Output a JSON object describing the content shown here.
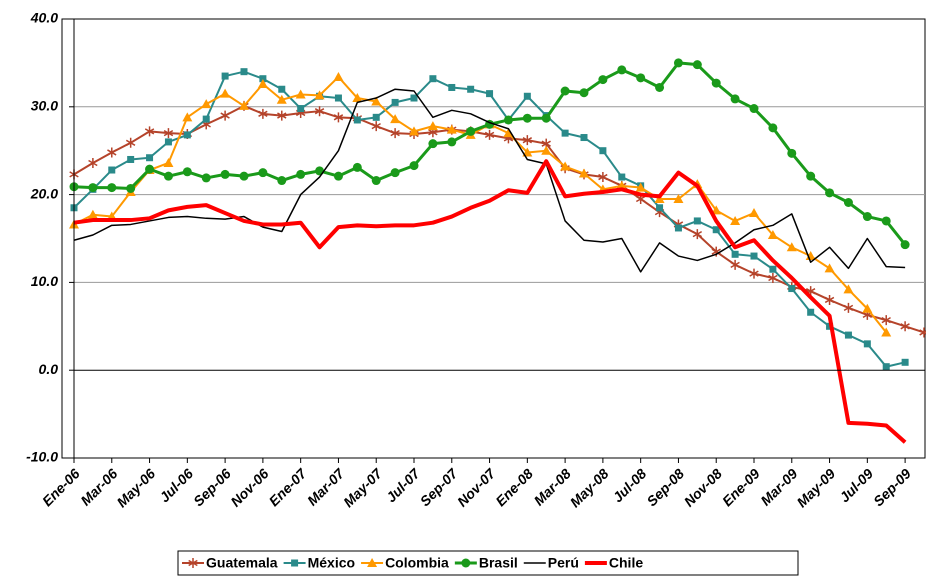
{
  "chart_data": {
    "type": "line",
    "categories": [
      "Ene-06",
      null,
      "Mar-06",
      null,
      "May-06",
      null,
      "Jul-06",
      null,
      "Sep-06",
      null,
      "Nov-06",
      null,
      "Ene-07",
      null,
      "Mar-07",
      null,
      "May-07",
      null,
      "Jul-07",
      null,
      "Sep-07",
      null,
      "Nov-07",
      null,
      "Ene-08",
      null,
      "Mar-08",
      null,
      "May-08",
      null,
      "Jul-08",
      null,
      "Sep-08",
      null,
      "Nov-08",
      null,
      "Ene-09",
      null,
      "Mar-09",
      null,
      "May-09",
      null,
      "Jul-09",
      null,
      "Sep-09",
      null
    ],
    "ylim": [
      -10,
      40
    ],
    "yticks": [
      {
        "value": -10,
        "label": "-10.0"
      },
      {
        "value": 0,
        "label": "0.0"
      },
      {
        "value": 10,
        "label": "10.0"
      },
      {
        "value": 20,
        "label": "20.0"
      },
      {
        "value": 30,
        "label": "30.0"
      },
      {
        "value": 40,
        "label": "40.0"
      }
    ],
    "grid": true,
    "legend": "bottom",
    "series": [
      {
        "name": "Guatemala",
        "color": "#b5432a",
        "marker": "star",
        "line_width": 2,
        "values": [
          22.3,
          23.6,
          24.8,
          25.9,
          27.2,
          27.0,
          26.9,
          28.0,
          29.0,
          30.1,
          29.2,
          29.0,
          29.3,
          29.5,
          28.8,
          28.7,
          27.8,
          27.0,
          26.9,
          27.1,
          27.4,
          27.2,
          26.8,
          26.4,
          26.2,
          25.8,
          23.0,
          22.3,
          22.0,
          21.0,
          19.5,
          18.0,
          16.6,
          15.5,
          13.5,
          12.0,
          11.0,
          10.5,
          9.5,
          9.0,
          8.0,
          7.1,
          6.3,
          5.7,
          5.0,
          4.3
        ]
      },
      {
        "name": "México",
        "color": "#2a8a8a",
        "marker": "square",
        "line_width": 2,
        "values": [
          18.5,
          20.6,
          22.8,
          24.0,
          24.2,
          26.0,
          26.8,
          28.6,
          33.5,
          34.0,
          33.2,
          32.0,
          29.8,
          31.2,
          31.0,
          28.5,
          28.8,
          30.5,
          31.0,
          33.2,
          32.2,
          32.0,
          31.5,
          28.5,
          31.2,
          29.0,
          27.0,
          26.5,
          25.0,
          22.0,
          21.0,
          18.5,
          16.2,
          17.0,
          16.0,
          13.2,
          13.0,
          11.5,
          9.3,
          6.6,
          5.0,
          4.0,
          3.0,
          0.4,
          0.9,
          null
        ]
      },
      {
        "name": "Colombia",
        "color": "#ff9900",
        "marker": "triangle",
        "line_width": 2,
        "values": [
          16.6,
          17.7,
          17.5,
          20.3,
          22.8,
          23.6,
          28.8,
          30.3,
          31.5,
          30.1,
          32.6,
          30.8,
          31.4,
          31.3,
          33.4,
          31.0,
          30.6,
          28.6,
          27.2,
          27.8,
          27.4,
          26.8,
          28.0,
          27.0,
          24.8,
          25.0,
          23.2,
          22.4,
          20.6,
          21.0,
          20.8,
          19.5,
          19.5,
          21.2,
          18.2,
          17.0,
          17.9,
          15.4,
          14.0,
          13.0,
          11.6,
          9.2,
          7.0,
          4.3,
          null,
          null
        ]
      },
      {
        "name": "Brasil",
        "color": "#1a9a1a",
        "marker": "circle",
        "line_width": 3,
        "values": [
          20.9,
          20.8,
          20.8,
          20.7,
          22.9,
          22.1,
          22.6,
          21.9,
          22.3,
          22.1,
          22.5,
          21.6,
          22.3,
          22.7,
          22.1,
          23.1,
          21.6,
          22.5,
          23.3,
          25.8,
          26.0,
          27.2,
          28.0,
          28.5,
          28.7,
          28.7,
          31.8,
          31.6,
          33.1,
          34.2,
          33.3,
          32.2,
          35.0,
          34.8,
          32.7,
          30.9,
          29.8,
          27.6,
          24.7,
          22.1,
          20.2,
          19.1,
          17.5,
          17.0,
          14.3,
          null
        ]
      },
      {
        "name": "Perú",
        "color": "#000000",
        "marker": "none",
        "line_width": 1.5,
        "values": [
          14.8,
          15.4,
          16.5,
          16.6,
          17.0,
          17.4,
          17.5,
          17.3,
          17.2,
          17.5,
          16.3,
          15.8,
          20.0,
          22.0,
          25.0,
          30.5,
          31.0,
          32.0,
          31.8,
          28.8,
          29.6,
          29.2,
          28.2,
          27.5,
          24.0,
          23.5,
          17.0,
          14.8,
          14.6,
          15.0,
          11.2,
          14.5,
          13.0,
          12.5,
          13.2,
          14.5,
          16.0,
          16.5,
          17.8,
          12.3,
          14.0,
          11.6,
          15.0,
          11.8,
          11.7,
          null
        ]
      },
      {
        "name": "Chile",
        "color": "#ff0000",
        "marker": "none",
        "line_width": 4,
        "values": [
          16.8,
          17.1,
          17.1,
          17.1,
          17.3,
          18.2,
          18.6,
          18.8,
          17.9,
          17.0,
          16.6,
          16.6,
          16.8,
          14.0,
          16.3,
          16.5,
          16.4,
          16.5,
          16.5,
          16.8,
          17.5,
          18.5,
          19.3,
          20.5,
          20.2,
          23.8,
          19.8,
          20.1,
          20.3,
          20.6,
          20.0,
          19.8,
          22.5,
          21.0,
          17.0,
          14.0,
          14.8,
          12.5,
          10.5,
          8.3,
          6.2,
          -6.0,
          -6.1,
          -6.3,
          -8.2,
          null
        ]
      }
    ]
  }
}
